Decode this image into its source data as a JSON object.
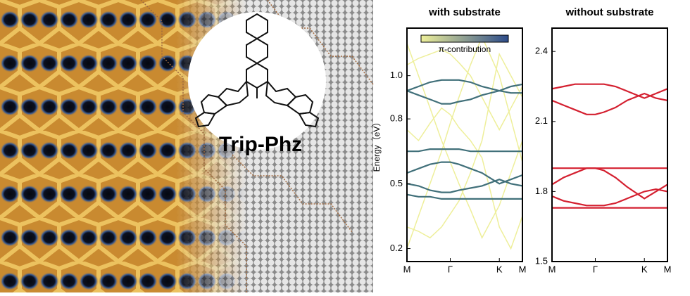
{
  "image_label": "Trip-Phz",
  "chart_data": [
    {
      "type": "line",
      "title": "with substrate",
      "y_label": "Energy（eV）",
      "legend_label": "π-contribution",
      "x": [
        0,
        0.1,
        0.2,
        0.3,
        0.375,
        0.45,
        0.55,
        0.65,
        0.8,
        0.9,
        1
      ],
      "xlim": [
        0,
        1
      ],
      "xticks": [
        {
          "value": 0,
          "label": "M"
        },
        {
          "value": 0.375,
          "label": "Γ"
        },
        {
          "value": 0.8,
          "label": "K"
        },
        {
          "value": 1,
          "label": "M"
        }
      ],
      "ylim": [
        0.14,
        1.22
      ],
      "yticks": [
        0.2,
        0.5,
        0.8,
        {
          "value": 1.0,
          "label": "1.0"
        }
      ],
      "series": [
        {
          "color": "#eeef9a",
          "values": [
            0.2,
            0.35,
            0.5,
            0.65,
            0.78,
            0.9,
            1.05,
            1.18,
            1.0,
            0.8,
            0.6
          ]
        },
        {
          "color": "#eeef9a",
          "values": [
            1.15,
            1.0,
            0.85,
            0.7,
            0.6,
            0.5,
            0.38,
            0.25,
            0.4,
            0.55,
            0.7
          ]
        },
        {
          "color": "#eeef9a",
          "values": [
            0.75,
            0.7,
            0.78,
            0.85,
            0.82,
            0.76,
            0.7,
            0.62,
            0.3,
            0.2,
            0.35
          ]
        },
        {
          "color": "#eeef9a",
          "values": [
            0.3,
            0.28,
            0.25,
            0.3,
            0.36,
            0.42,
            0.55,
            0.7,
            1.1,
            1.0,
            0.9
          ]
        },
        {
          "color": "#eeef9a",
          "values": [
            1.05,
            1.08,
            1.1,
            1.12,
            1.1,
            1.06,
            1.0,
            0.9,
            0.75,
            0.85,
            0.95
          ]
        },
        {
          "color": "#41707a",
          "values": [
            0.93,
            0.95,
            0.97,
            0.98,
            0.98,
            0.98,
            0.97,
            0.95,
            0.93,
            0.95,
            0.96
          ]
        },
        {
          "color": "#41707a",
          "values": [
            0.93,
            0.91,
            0.89,
            0.87,
            0.87,
            0.88,
            0.89,
            0.91,
            0.93,
            0.92,
            0.92
          ]
        },
        {
          "color": "#41707a",
          "values": [
            0.65,
            0.65,
            0.66,
            0.66,
            0.66,
            0.66,
            0.65,
            0.65,
            0.65,
            0.65,
            0.65
          ]
        },
        {
          "color": "#41707a",
          "values": [
            0.55,
            0.57,
            0.59,
            0.6,
            0.6,
            0.59,
            0.57,
            0.55,
            0.5,
            0.52,
            0.54
          ]
        },
        {
          "color": "#41707a",
          "values": [
            0.5,
            0.49,
            0.47,
            0.46,
            0.46,
            0.47,
            0.48,
            0.49,
            0.52,
            0.5,
            0.49
          ]
        },
        {
          "color": "#41707a",
          "values": [
            0.45,
            0.44,
            0.44,
            0.43,
            0.43,
            0.43,
            0.43,
            0.43,
            0.43,
            0.43,
            0.43
          ]
        }
      ]
    },
    {
      "type": "line",
      "title": "without substrate",
      "x": [
        0,
        0.1,
        0.2,
        0.3,
        0.375,
        0.45,
        0.55,
        0.65,
        0.8,
        0.9,
        1
      ],
      "xlim": [
        0,
        1
      ],
      "xticks": [
        {
          "value": 0,
          "label": "M"
        },
        {
          "value": 0.375,
          "label": "Γ"
        },
        {
          "value": 0.8,
          "label": "K"
        },
        {
          "value": 1,
          "label": "M"
        }
      ],
      "ylim": [
        1.5,
        2.5
      ],
      "yticks": [
        1.5,
        1.8,
        2.1,
        2.4
      ],
      "series": [
        {
          "color": "#d42030",
          "values": [
            2.24,
            2.25,
            2.26,
            2.26,
            2.26,
            2.26,
            2.25,
            2.23,
            2.2,
            2.22,
            2.24
          ]
        },
        {
          "color": "#d42030",
          "values": [
            2.19,
            2.17,
            2.15,
            2.13,
            2.13,
            2.14,
            2.16,
            2.19,
            2.22,
            2.2,
            2.19
          ]
        },
        {
          "color": "#d42030",
          "values": [
            1.9,
            1.9,
            1.9,
            1.9,
            1.9,
            1.9,
            1.9,
            1.9,
            1.9,
            1.9,
            1.9
          ]
        },
        {
          "color": "#d42030",
          "values": [
            1.83,
            1.86,
            1.88,
            1.9,
            1.9,
            1.89,
            1.86,
            1.82,
            1.77,
            1.8,
            1.83
          ]
        },
        {
          "color": "#d42030",
          "values": [
            1.78,
            1.76,
            1.75,
            1.74,
            1.74,
            1.74,
            1.75,
            1.77,
            1.8,
            1.81,
            1.8
          ]
        },
        {
          "color": "#d42030",
          "values": [
            1.73,
            1.73,
            1.73,
            1.73,
            1.73,
            1.73,
            1.73,
            1.73,
            1.73,
            1.73,
            1.73
          ]
        }
      ]
    }
  ]
}
